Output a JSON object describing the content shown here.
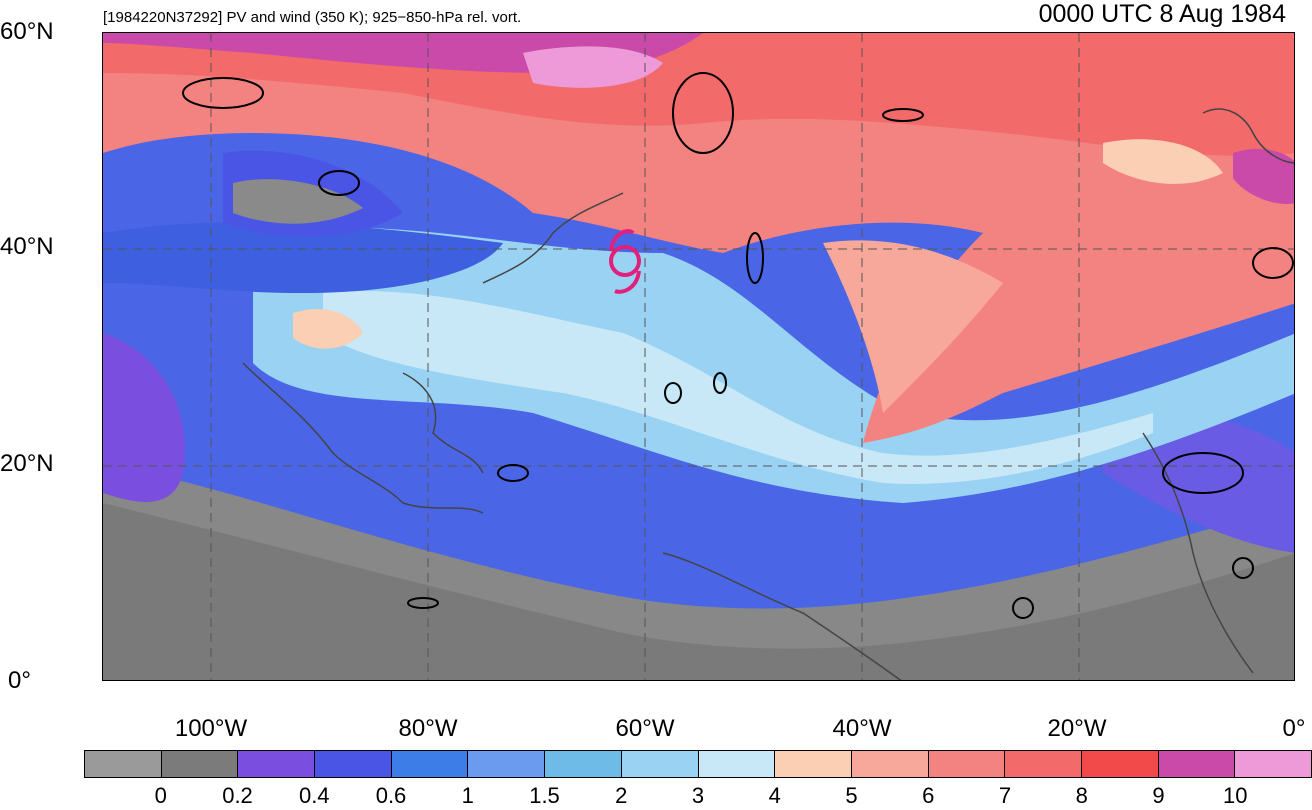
{
  "header": {
    "left_title": "[1984220N37292] PV and wind (350 K); 925−850-hPa rel. vort.",
    "right_title": "0000 UTC 8 Aug 1984"
  },
  "axes": {
    "lat_labels": [
      "60°N",
      "40°N",
      "20°N",
      "0°"
    ],
    "lon_labels": [
      "100°W",
      "80°W",
      "60°W",
      "40°W",
      "20°W",
      "0°"
    ]
  },
  "map": {
    "lon_range": [
      -110,
      0
    ],
    "lat_range": [
      0,
      60
    ],
    "storm_marker": {
      "symbol": "tropical-cyclone-icon",
      "lon": -62,
      "lat": 38.5,
      "color": "#e0207a"
    }
  },
  "colorbar": {
    "colors": [
      "#9a9a9a",
      "#7b7b7b",
      "#7a4fe0",
      "#4a55e6",
      "#3d7de8",
      "#6a9bee",
      "#6fbbe8",
      "#99d2f2",
      "#c8e8f8",
      "#fbcfb4",
      "#f7a89a",
      "#f38380",
      "#f26a6a",
      "#f24a4a",
      "#c94aa8",
      "#ee9ad8"
    ],
    "labels": [
      "0",
      "0.2",
      "0.4",
      "0.6",
      "1",
      "1.5",
      "2",
      "3",
      "4",
      "5",
      "6",
      "7",
      "8",
      "9",
      "10"
    ]
  }
}
